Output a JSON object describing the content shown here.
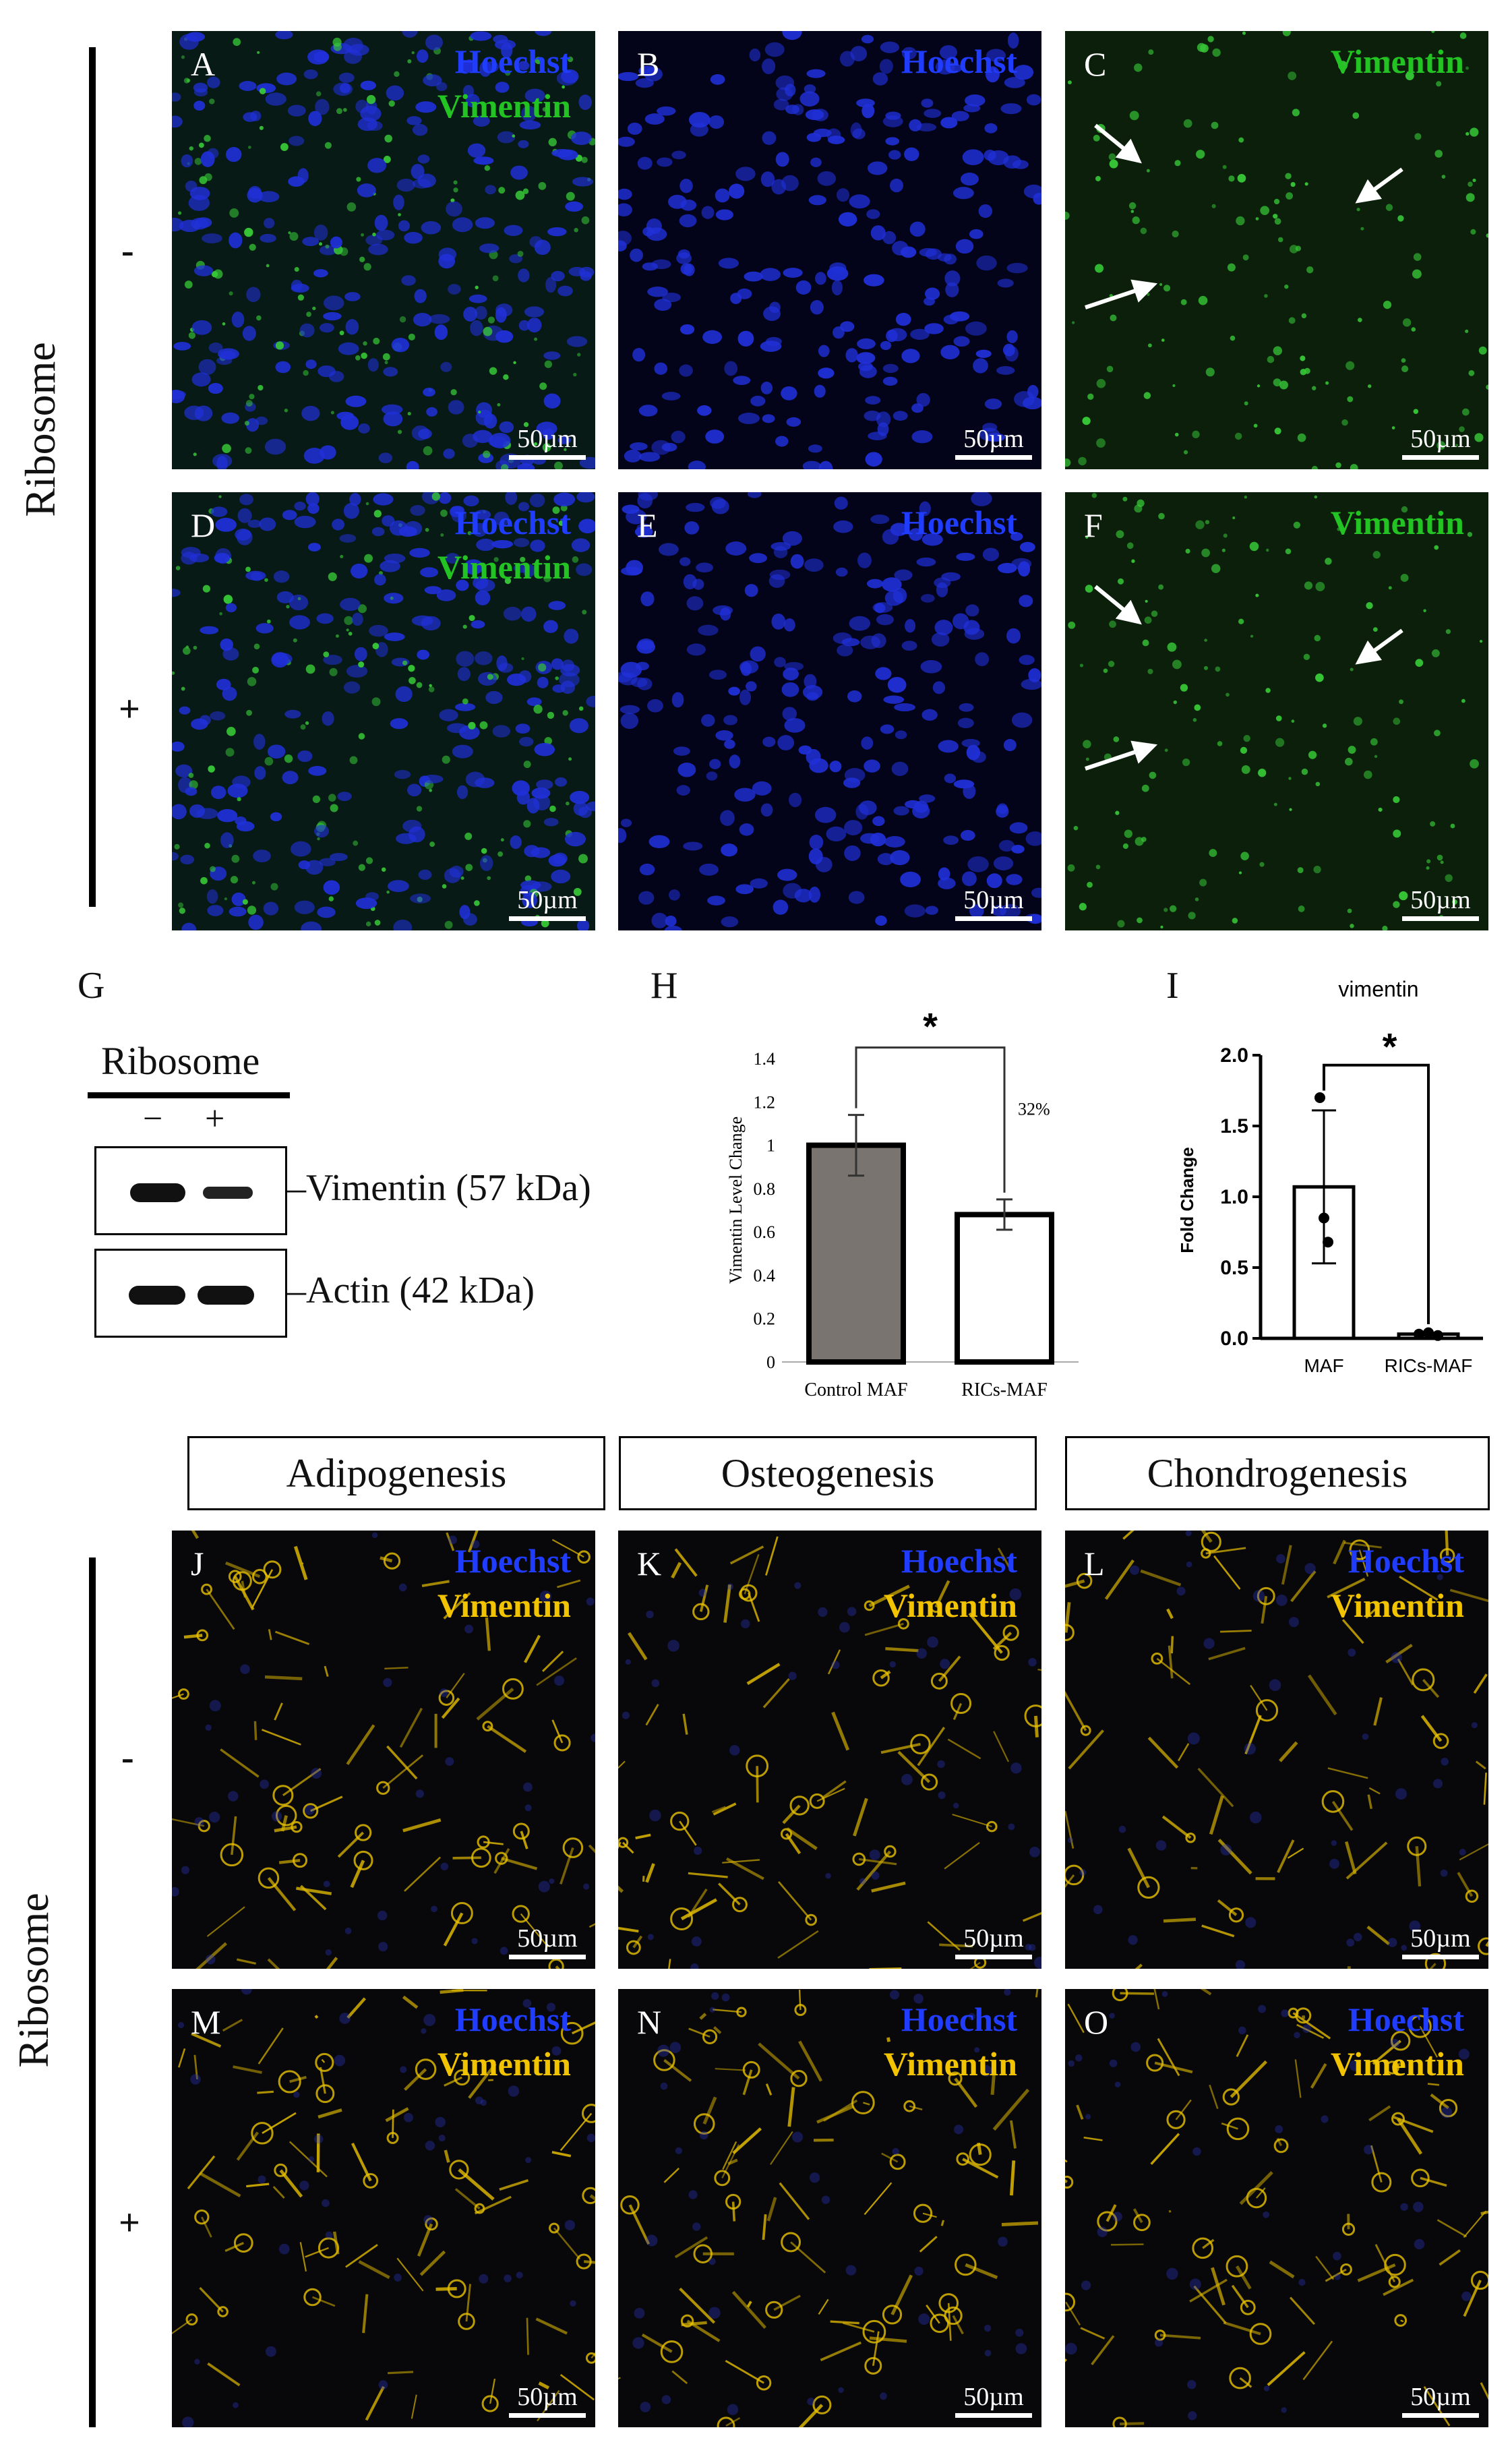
{
  "row_title_top": "Ribosome",
  "row_title_bottom": "Ribosome",
  "signs": {
    "minus": "-",
    "plus": "+"
  },
  "scale_label": "50µm",
  "stains": {
    "hoechst": "Hoechst",
    "vimentin": "Vimentin"
  },
  "colors": {
    "hoechst": "#1f3cff",
    "vimentin_green": "#22c322",
    "vimentin_yellow": "#f2c400"
  },
  "panels_top": [
    {
      "letter": "A",
      "stain1": "Hoechst",
      "stain2": "Vimentin"
    },
    {
      "letter": "B",
      "stain1": "Hoechst",
      "stain2": ""
    },
    {
      "letter": "C",
      "stain1": "Vimentin",
      "stain2": ""
    },
    {
      "letter": "D",
      "stain1": "Hoechst",
      "stain2": "Vimentin"
    },
    {
      "letter": "E",
      "stain1": "Hoechst",
      "stain2": ""
    },
    {
      "letter": "F",
      "stain1": "Vimentin",
      "stain2": ""
    }
  ],
  "panel_letters": {
    "G": "G",
    "H": "H",
    "I": "I"
  },
  "western": {
    "title": "Ribosome",
    "lanes": [
      "−",
      "+"
    ],
    "bands": [
      "Vimentin (57 kDa)",
      "Actin (42 kDa)"
    ]
  },
  "differentiation_headers": [
    "Adipogenesis",
    "Osteogenesis",
    "Chondrogenesis"
  ],
  "panels_bottom": [
    {
      "letter": "J",
      "stain1": "Hoechst",
      "stain2": "Vimentin"
    },
    {
      "letter": "K",
      "stain1": "Hoechst",
      "stain2": "Vimentin"
    },
    {
      "letter": "L",
      "stain1": "Hoechst",
      "stain2": "Vimentin"
    },
    {
      "letter": "M",
      "stain1": "Hoechst",
      "stain2": "Vimentin"
    },
    {
      "letter": "N",
      "stain1": "Hoechst",
      "stain2": "Vimentin"
    },
    {
      "letter": "O",
      "stain1": "Hoechst",
      "stain2": "Vimentin"
    }
  ],
  "chart_data": [
    {
      "type": "bar",
      "categories": [
        "Control MAF",
        "RICs-MAF"
      ],
      "values": [
        1.0,
        0.68
      ],
      "errors": [
        0.14,
        0.07
      ],
      "ylabel": "Vimentin Level Change",
      "ylim": [
        0,
        1.4
      ],
      "yticks": [
        "0",
        "0.2",
        "0.4",
        "0.6",
        "0.8",
        "1",
        "1.2",
        "1.4"
      ],
      "annotation": "32%",
      "significance": "*"
    },
    {
      "type": "bar",
      "title": "vimentin",
      "categories": [
        "MAF",
        "RICs-MAF"
      ],
      "values": [
        1.07,
        0.03
      ],
      "errors": [
        0.54,
        0.01
      ],
      "points": [
        [
          1.7,
          0.85,
          0.68
        ],
        [
          0.03,
          0.04,
          0.02
        ]
      ],
      "ylabel": "Fold Change",
      "ylim": [
        0,
        2.0
      ],
      "yticks": [
        "0.0",
        "0.5",
        "1.0",
        "1.5",
        "2.0"
      ],
      "significance": "*"
    }
  ]
}
